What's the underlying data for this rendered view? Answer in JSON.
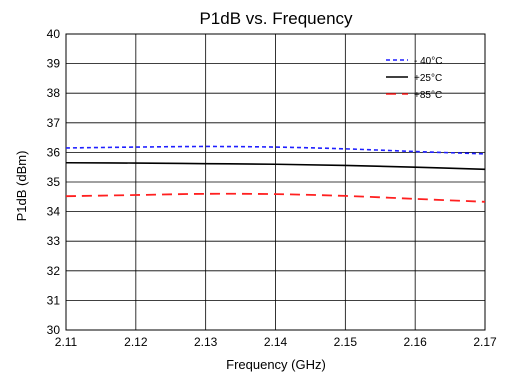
{
  "chart_data": {
    "type": "line",
    "title": "P1dB vs. Frequency",
    "xlabel": "Frequency (GHz)",
    "ylabel": "P1dB (dBm)",
    "xlim": [
      2.11,
      2.17
    ],
    "ylim": [
      30,
      40
    ],
    "x_ticks": [
      "2.11",
      "2.12",
      "2.13",
      "2.14",
      "2.15",
      "2.16",
      "2.17"
    ],
    "y_ticks": [
      "30",
      "31",
      "32",
      "33",
      "34",
      "35",
      "36",
      "37",
      "38",
      "39",
      "40"
    ],
    "grid": true,
    "legend_position": "top-right",
    "x": [
      2.11,
      2.12,
      2.13,
      2.14,
      2.15,
      2.16,
      2.17
    ],
    "series": [
      {
        "name": "- 40°C",
        "color": "#1f1fff",
        "dash": "dashed-short",
        "values": [
          36.15,
          36.18,
          36.2,
          36.18,
          36.12,
          36.03,
          35.95
        ]
      },
      {
        "name": "+25°C",
        "color": "#000000",
        "dash": "solid",
        "values": [
          35.65,
          35.64,
          35.62,
          35.6,
          35.56,
          35.5,
          35.43
        ]
      },
      {
        "name": "+85°C",
        "color": "#ff2020",
        "dash": "dashed-long",
        "values": [
          34.52,
          34.56,
          34.6,
          34.59,
          34.53,
          34.43,
          34.33
        ]
      }
    ]
  }
}
